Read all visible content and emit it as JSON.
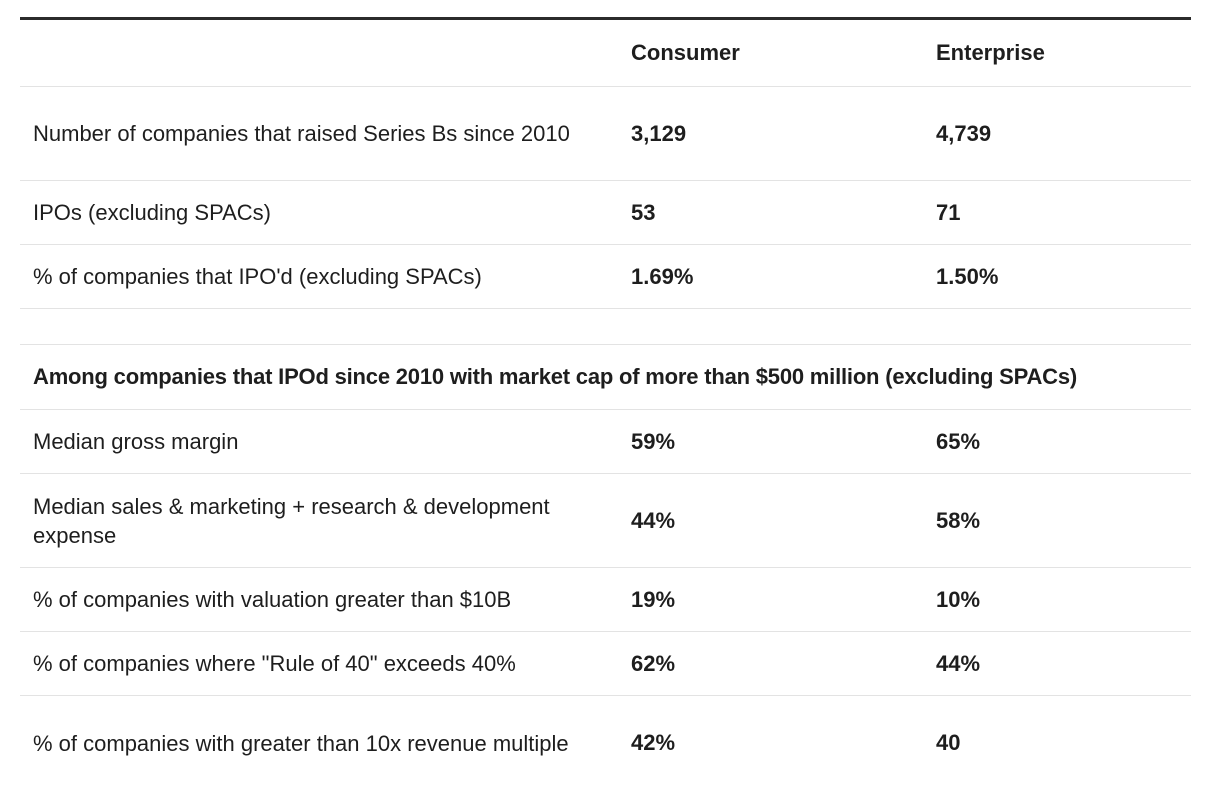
{
  "header": {
    "label": "",
    "consumer": "Consumer",
    "enterprise": "Enterprise"
  },
  "group1": [
    {
      "label": "Number of companies that raised Series Bs since 2010",
      "consumer": "3,129",
      "enterprise": "4,739"
    },
    {
      "label": "IPOs (excluding SPACs)",
      "consumer": "53",
      "enterprise": "71"
    },
    {
      "label": "% of companies that IPO'd (excluding SPACs)",
      "consumer": "1.69%",
      "enterprise": "1.50%"
    }
  ],
  "section": {
    "title": "Among companies that IPOd since 2010 with market cap of more than $500 million (excluding SPACs)"
  },
  "group2": [
    {
      "label": "Median gross margin",
      "consumer": "59%",
      "enterprise": "65%"
    },
    {
      "label": "Median sales & marketing + research & development expense",
      "consumer": "44%",
      "enterprise": "58%"
    },
    {
      "label": "% of companies with valuation greater than $10B",
      "consumer": "19%",
      "enterprise": "10%"
    },
    {
      "label": "% of companies where \"Rule of 40\" exceeds 40%",
      "consumer": "62%",
      "enterprise": "44%"
    },
    {
      "label": "% of companies with greater than 10x revenue multiple",
      "consumer": "42%",
      "enterprise": "40"
    }
  ]
}
